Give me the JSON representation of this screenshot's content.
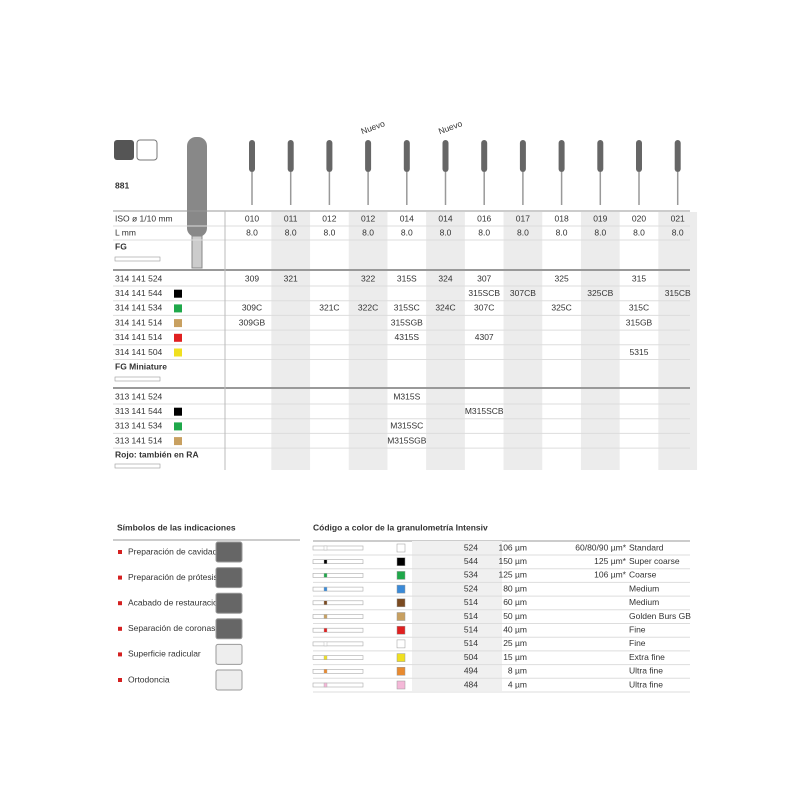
{
  "product": {
    "code": "881"
  },
  "row_labels": {
    "iso": "ISO ø 1/10 mm",
    "l": "L mm"
  },
  "columns": [
    {
      "iso": "010",
      "l": "8.0"
    },
    {
      "iso": "011",
      "l": "8.0"
    },
    {
      "iso": "012",
      "l": "8.0"
    },
    {
      "iso": "012",
      "l": "8.0",
      "note": "Nuevo"
    },
    {
      "iso": "014",
      "l": "8.0"
    },
    {
      "iso": "014",
      "l": "8.0",
      "note": "Nuevo"
    },
    {
      "iso": "016",
      "l": "8.0"
    },
    {
      "iso": "017",
      "l": "8.0"
    },
    {
      "iso": "018",
      "l": "8.0"
    },
    {
      "iso": "019",
      "l": "8.0"
    },
    {
      "iso": "020",
      "l": "8.0"
    },
    {
      "iso": "021",
      "l": "8.0"
    }
  ],
  "fg": {
    "label": "FG",
    "rows": [
      {
        "ref": "314 141 524",
        "swatch": null,
        "cells": [
          "309",
          "321",
          null,
          "322",
          {
            "text": "315S",
            "color": "#e03a3a"
          },
          "324",
          "307",
          null,
          "325",
          null,
          "315",
          null
        ]
      },
      {
        "ref": "314 141 544",
        "swatch": "#000000",
        "cells": [
          null,
          null,
          null,
          null,
          null,
          null,
          "315SCB",
          "307CB",
          null,
          "325CB",
          null,
          "315CB"
        ]
      },
      {
        "ref": "314 141 534",
        "swatch": "#1fa84a",
        "cells": [
          "309C",
          null,
          "321C",
          "322C",
          "315SC",
          "324C",
          "307C",
          null,
          "325C",
          null,
          "315C",
          null
        ]
      },
      {
        "ref": "314 141 514",
        "swatch": "#c8a060",
        "cells": [
          "309GB",
          null,
          null,
          null,
          "315SGB",
          null,
          null,
          null,
          null,
          null,
          "315GB",
          null
        ]
      },
      {
        "ref": "314 141 514",
        "swatch": "#e02020",
        "cells": [
          null,
          null,
          null,
          null,
          "4315S",
          null,
          "4307",
          null,
          null,
          null,
          null,
          null
        ]
      },
      {
        "ref": "314 141 504",
        "swatch": "#f0e020",
        "cells": [
          null,
          null,
          null,
          null,
          null,
          null,
          null,
          null,
          null,
          null,
          "5315",
          null
        ]
      }
    ]
  },
  "miniature": {
    "label": "FG Miniature",
    "rows": [
      {
        "ref": "313 141 524",
        "swatch": null,
        "cells": [
          null,
          null,
          null,
          null,
          "M315S",
          null,
          null,
          null,
          null,
          null,
          null,
          null
        ]
      },
      {
        "ref": "313 141 544",
        "swatch": "#000000",
        "cells": [
          null,
          null,
          null,
          null,
          null,
          null,
          "M315SCB",
          null,
          null,
          null,
          null,
          null
        ]
      },
      {
        "ref": "313 141 534",
        "swatch": "#1fa84a",
        "cells": [
          null,
          null,
          null,
          null,
          "M315SC",
          null,
          null,
          null,
          null,
          null,
          null,
          null
        ]
      },
      {
        "ref": "313 141 514",
        "swatch": "#c8a060",
        "cells": [
          null,
          null,
          null,
          null,
          "M315SGB",
          null,
          null,
          null,
          null,
          null,
          null,
          null
        ]
      }
    ]
  },
  "footnote": "Rojo: también en RA",
  "indications": {
    "title": "Símbolos de las indicaciones",
    "items": [
      "Preparación de cavidades",
      "Preparación de prótesis",
      "Acabado de restauraciones",
      "Separación de coronas",
      "Superficie radicular",
      "Ortodoncia"
    ]
  },
  "grit": {
    "title": "Código a color de la granulometría Intensiv",
    "rows": [
      {
        "color": "#ffffff",
        "code": "524",
        "size": "106 µm",
        "alt": "60/80/90 µm*",
        "name": "Standard"
      },
      {
        "color": "#000000",
        "code": "544",
        "size": "150 µm",
        "alt": "125 µm*",
        "name": "Super coarse"
      },
      {
        "color": "#1fa84a",
        "code": "534",
        "size": "125 µm",
        "alt": "106 µm*",
        "name": "Coarse"
      },
      {
        "color": "#3a8ad8",
        "code": "524",
        "size": "80 µm",
        "name": "Medium"
      },
      {
        "color": "#7a4a20",
        "code": "514",
        "size": "60 µm",
        "name": "Medium"
      },
      {
        "color": "#c8a060",
        "code": "514",
        "size": "50 µm",
        "name": "Golden Burs GB"
      },
      {
        "color": "#e02020",
        "code": "514",
        "size": "40 µm",
        "name": "Fine"
      },
      {
        "color": "#ffffff",
        "code": "514",
        "size": "25 µm",
        "name": "Fine"
      },
      {
        "color": "#f0e020",
        "code": "504",
        "size": "15 µm",
        "name": "Extra fine"
      },
      {
        "color": "#e88a30",
        "code": "494",
        "size": "8 µm",
        "name": "Ultra fine"
      },
      {
        "color": "#f4b8d8",
        "code": "484",
        "size": "4 µm",
        "name": "Ultra fine"
      }
    ]
  }
}
